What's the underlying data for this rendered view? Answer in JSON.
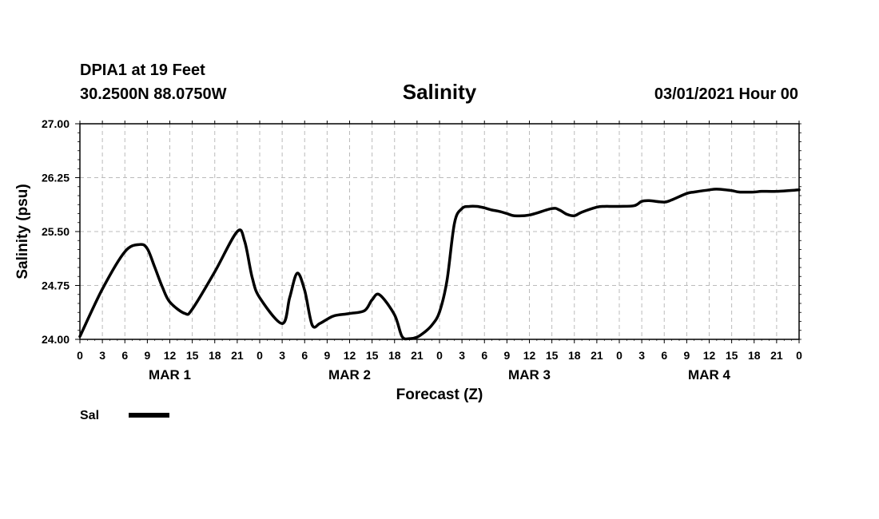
{
  "header": {
    "station": "DPIA1 at 19 Feet",
    "coords": "30.2500N 88.0750W",
    "datetime": "03/01/2021 Hour 00"
  },
  "chart_data": {
    "type": "line",
    "title": "Salinity",
    "xlabel": "Forecast (Z)",
    "ylabel": "Salinity (psu)",
    "ylim": [
      24.0,
      27.0
    ],
    "xlim": [
      0,
      96
    ],
    "yticks": [
      "24.00",
      "24.75",
      "25.50",
      "26.25",
      "27.00"
    ],
    "xtick_labels": [
      "0",
      "3",
      "6",
      "9",
      "12",
      "15",
      "18",
      "21",
      "0",
      "3",
      "6",
      "9",
      "12",
      "15",
      "18",
      "21",
      "0",
      "3",
      "6",
      "9",
      "12",
      "15",
      "18",
      "21",
      "0",
      "3",
      "6",
      "9",
      "12",
      "15",
      "18",
      "21",
      "0"
    ],
    "day_labels": [
      {
        "label": "MAR 1",
        "hour": 12
      },
      {
        "label": "MAR 2",
        "hour": 36
      },
      {
        "label": "MAR 3",
        "hour": 60
      },
      {
        "label": "MAR 4",
        "hour": 84
      }
    ],
    "grid": true,
    "legend": {
      "position": "bottom-left",
      "entries": [
        {
          "name": "Sal",
          "color": "#000000"
        }
      ]
    },
    "series": [
      {
        "name": "Sal",
        "color": "#000000",
        "x": [
          0,
          3,
          6,
          8,
          9,
          10,
          11,
          12,
          14,
          15,
          18,
          21,
          22,
          23,
          24,
          27,
          28,
          29,
          30,
          31,
          32,
          33,
          34,
          36,
          38,
          39,
          40,
          42,
          43,
          44,
          45,
          46,
          47,
          48,
          49,
          50,
          51,
          52,
          53,
          54,
          55,
          56,
          57,
          58,
          60,
          63,
          64,
          65,
          66,
          67,
          69,
          70,
          71,
          72,
          74,
          75,
          76,
          78,
          79,
          81,
          82,
          84,
          85,
          87,
          88,
          90,
          91,
          93,
          96
        ],
        "values": [
          24.04,
          24.7,
          25.22,
          25.32,
          25.26,
          25.0,
          24.73,
          24.52,
          24.36,
          24.42,
          24.94,
          25.5,
          25.36,
          24.86,
          24.58,
          24.22,
          24.58,
          24.92,
          24.68,
          24.2,
          24.22,
          24.28,
          24.33,
          24.36,
          24.4,
          24.55,
          24.62,
          24.34,
          24.04,
          24.01,
          24.03,
          24.1,
          24.2,
          24.38,
          24.82,
          25.62,
          25.82,
          25.85,
          25.85,
          25.83,
          25.8,
          25.78,
          25.75,
          25.72,
          25.73,
          25.82,
          25.8,
          25.74,
          25.72,
          25.77,
          25.84,
          25.85,
          25.85,
          25.85,
          25.86,
          25.92,
          25.93,
          25.91,
          25.94,
          26.03,
          26.05,
          26.08,
          26.09,
          26.07,
          26.05,
          26.05,
          26.06,
          26.06,
          26.08
        ]
      }
    ]
  }
}
